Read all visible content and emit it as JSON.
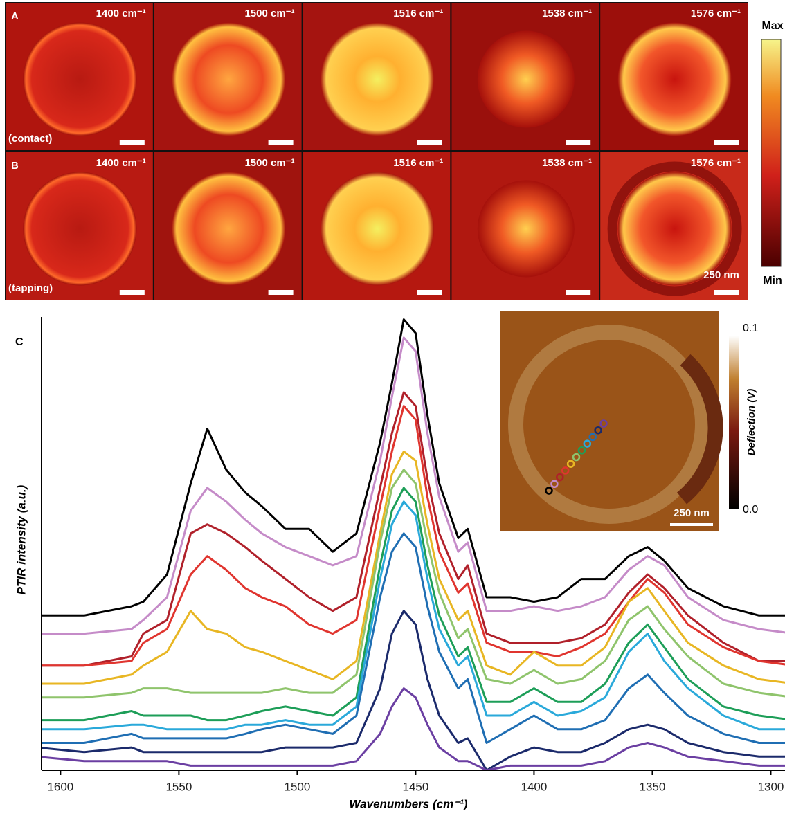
{
  "panels": {
    "rows": [
      {
        "label": "A",
        "mode": "(contact)",
        "images": [
          "1400 cm⁻¹",
          "1500 cm⁻¹",
          "1516 cm⁻¹",
          "1538 cm⁻¹",
          "1576 cm⁻¹"
        ]
      },
      {
        "label": "B",
        "mode": "(tapping)",
        "images": [
          "1400 cm⁻¹",
          "1500 cm⁻¹",
          "1516 cm⁻¹",
          "1538 cm⁻¹",
          "1576 cm⁻¹"
        ],
        "scale_label": "250 nm"
      }
    ],
    "colorbar": {
      "max": "Max",
      "min": "Min"
    }
  },
  "chart_data": {
    "type": "line",
    "label": "C",
    "xlabel": "Wavenumbers (cm⁻¹)",
    "ylabel": "PTIR intensity (a.u.)",
    "xlim": [
      1608,
      1294
    ],
    "xticks": [
      1600,
      1550,
      1500,
      1450,
      1400,
      1350,
      1300
    ],
    "ylim": [
      0,
      100
    ],
    "x": [
      1610,
      1590,
      1570,
      1565,
      1555,
      1545,
      1538,
      1530,
      1522,
      1515,
      1505,
      1495,
      1485,
      1475,
      1465,
      1460,
      1455,
      1450,
      1445,
      1440,
      1432,
      1428,
      1420,
      1410,
      1400,
      1390,
      1380,
      1370,
      1360,
      1352,
      1345,
      1335,
      1320,
      1305,
      1290
    ],
    "series": [
      {
        "color": "#000000",
        "values": [
          34,
          34,
          36,
          37,
          43,
          63,
          75,
          66,
          61,
          58,
          53,
          53,
          48,
          52,
          72,
          85,
          99,
          96,
          78,
          63,
          51,
          53,
          38,
          38,
          37,
          38,
          42,
          42,
          47,
          49,
          46,
          40,
          36,
          34,
          34
        ]
      },
      {
        "color": "#c58bc8",
        "values": [
          30,
          30,
          31,
          33,
          38,
          57,
          62,
          59,
          55,
          52,
          49,
          47,
          45,
          47,
          68,
          82,
          95,
          92,
          74,
          60,
          48,
          50,
          35,
          35,
          36,
          35,
          36,
          38,
          44,
          47,
          45,
          38,
          33,
          31,
          30
        ]
      },
      {
        "color": "#b0202a",
        "values": [
          23,
          23,
          25,
          30,
          33,
          52,
          54,
          52,
          49,
          46,
          42,
          38,
          35,
          38,
          62,
          74,
          83,
          80,
          64,
          52,
          42,
          45,
          30,
          28,
          28,
          28,
          29,
          32,
          39,
          43,
          40,
          34,
          28,
          24,
          24
        ]
      },
      {
        "color": "#e0352f",
        "values": [
          23,
          23,
          24,
          28,
          31,
          43,
          47,
          44,
          40,
          38,
          36,
          32,
          30,
          33,
          58,
          70,
          80,
          77,
          60,
          48,
          39,
          41,
          28,
          26,
          26,
          25,
          27,
          30,
          37,
          42,
          39,
          32,
          27,
          24,
          23
        ]
      },
      {
        "color": "#e8b623",
        "values": [
          19,
          19,
          21,
          23,
          26,
          35,
          31,
          30,
          27,
          26,
          24,
          22,
          20,
          24,
          52,
          65,
          70,
          68,
          54,
          42,
          33,
          35,
          23,
          21,
          26,
          23,
          23,
          27,
          37,
          40,
          35,
          28,
          23,
          20,
          19
        ]
      },
      {
        "color": "#8fc46c",
        "values": [
          16,
          16,
          17,
          18,
          18,
          17,
          17,
          17,
          17,
          17,
          18,
          17,
          17,
          21,
          50,
          62,
          66,
          63,
          50,
          39,
          29,
          31,
          20,
          19,
          22,
          19,
          20,
          24,
          33,
          36,
          31,
          25,
          19,
          17,
          16
        ]
      },
      {
        "color": "#1d9e58",
        "values": [
          11,
          11,
          13,
          12,
          12,
          12,
          11,
          11,
          12,
          13,
          14,
          13,
          12,
          16,
          45,
          57,
          62,
          59,
          45,
          34,
          25,
          27,
          15,
          15,
          18,
          15,
          15,
          19,
          28,
          32,
          27,
          20,
          14,
          12,
          11
        ]
      },
      {
        "color": "#2aa9da",
        "values": [
          9,
          9,
          10,
          10,
          9,
          9,
          9,
          9,
          10,
          10,
          11,
          10,
          10,
          14,
          42,
          54,
          59,
          56,
          42,
          31,
          23,
          25,
          12,
          12,
          15,
          12,
          13,
          16,
          26,
          30,
          24,
          18,
          12,
          9,
          9
        ]
      },
      {
        "color": "#1f6eb3",
        "values": [
          6,
          6,
          8,
          7,
          7,
          7,
          7,
          7,
          8,
          9,
          10,
          9,
          8,
          12,
          38,
          48,
          52,
          49,
          36,
          26,
          18,
          20,
          6,
          9,
          12,
          9,
          9,
          11,
          18,
          21,
          17,
          12,
          8,
          6,
          6
        ]
      },
      {
        "color": "#1b2a6b",
        "values": [
          5,
          4,
          5,
          4,
          4,
          4,
          4,
          4,
          4,
          4,
          5,
          5,
          5,
          6,
          18,
          30,
          35,
          32,
          20,
          12,
          6,
          7,
          0,
          3,
          5,
          4,
          4,
          6,
          9,
          10,
          9,
          6,
          4,
          3,
          3
        ]
      },
      {
        "color": "#6b3fa2",
        "values": [
          3,
          2,
          2,
          2,
          2,
          1,
          1,
          1,
          1,
          1,
          1,
          1,
          1,
          2,
          8,
          14,
          18,
          16,
          10,
          5,
          2,
          2,
          0,
          1,
          1,
          1,
          1,
          2,
          5,
          6,
          5,
          3,
          2,
          1,
          1
        ]
      }
    ]
  },
  "inset": {
    "colorbar_label": "Deflection (V)",
    "colorbar_lim": [
      0,
      0.1
    ],
    "colorbar_ticks": [
      0.1,
      {
        "value": 0,
        "label": "0.0"
      }
    ],
    "scale_label": "250 nm"
  }
}
